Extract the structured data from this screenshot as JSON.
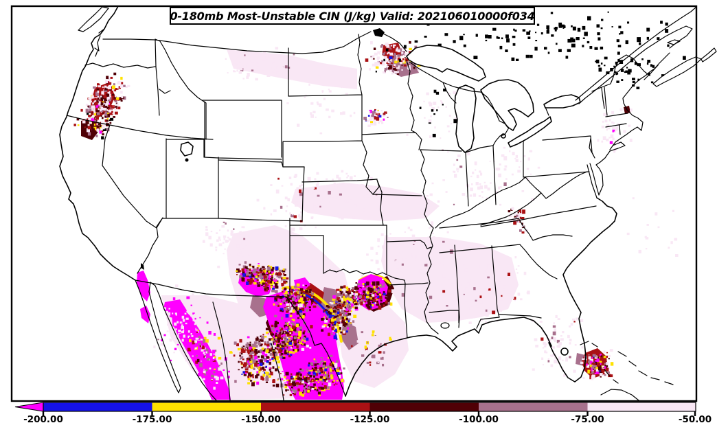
{
  "title": {
    "text": "0-180mb Most-Unstable CIN (J/kg) Valid: 202106010000f034"
  },
  "colorbar": {
    "tick_labels": [
      "-200.00",
      "-175.00",
      "-150.00",
      "-125.00",
      "-100.00",
      "-75.00",
      "-50.00"
    ],
    "segments": [
      {
        "range": "< -200",
        "color_key": "magenta",
        "shape": "left-arrow"
      },
      {
        "range": "-200 to -175",
        "color_key": "blue"
      },
      {
        "range": "-175 to -150",
        "color_key": "yellow"
      },
      {
        "range": "-150 to -125",
        "color_key": "firebrick"
      },
      {
        "range": "-125 to -100",
        "color_key": "dark_maroon"
      },
      {
        "range": "-100 to -75",
        "color_key": "mauve"
      },
      {
        "range": "-75 to -50",
        "color_key": "pale_pink"
      }
    ]
  },
  "palette": {
    "magenta": "#FF00FF",
    "blue": "#1512E8",
    "yellow": "#FFE200",
    "firebrick": "#AA1114",
    "dark_maroon": "#500006",
    "mauve": "#A8718D",
    "pale_pink": "#F9E7F5",
    "line_black": "#000000",
    "background": "#FFFFFF"
  },
  "chart_data": {
    "type": "heatmap",
    "title": "0-180mb Most-Unstable CIN (J/kg) Valid: 202106010000f034",
    "variable": "0-180mb Most-Unstable Convective Inhibition (CIN)",
    "unit": "J/kg",
    "valid_time": "202106010000f034",
    "basemap": "CONUS with state borders, Great Lakes, northern Mexico, southern Canada, Bahamas",
    "colorbar": {
      "ticks": [
        -200,
        -175,
        -150,
        -125,
        -100,
        -75,
        -50
      ],
      "orientation": "horizontal-bottom",
      "open_ended_left_arrow": true,
      "bins": [
        {
          "max": -200,
          "color": "#FF00FF"
        },
        {
          "min": -200,
          "max": -175,
          "color": "#1512E8"
        },
        {
          "min": -175,
          "max": -150,
          "color": "#FFE200"
        },
        {
          "min": -150,
          "max": -125,
          "color": "#AA1114"
        },
        {
          "min": -125,
          "max": -100,
          "color": "#500006"
        },
        {
          "min": -100,
          "max": -75,
          "color": "#A8718D"
        },
        {
          "min": -75,
          "max": -50,
          "color": "#F9E7F5"
        }
      ]
    },
    "regions": [
      {
        "area": "South Texas / Rio Grande valley",
        "approx_value": "< -200 (large magenta mass with blue/yellow/firebrick fringe)"
      },
      {
        "area": "Southeast New Mexico / Trans-Pecos / Chihuahua Mexico",
        "approx_value": "-200 to -100 dense speckles with < -200 cores"
      },
      {
        "area": "Northeast Texas / Southeast Oklahoma",
        "approx_value": "< -200 pocket ringed by -125 to -100"
      },
      {
        "area": "Baja California and Sonora/Sinaloa coast",
        "approx_value": "< -200 magenta bands"
      },
      {
        "area": "Oregon / far northern California",
        "approx_value": "-150 to -75 speckled cluster"
      },
      {
        "area": "Minnesota / North Dakota border",
        "approx_value": "-150 to -75 speckles"
      },
      {
        "area": "Bahamas east of south Florida",
        "approx_value": "-150 to -100 cluster with small < -200 core"
      },
      {
        "area": "Central Plains, Midwest, Southeast US",
        "approx_value": "-75 to -50 pale wash"
      },
      {
        "area": "Boston area / TN-VA Appalachians",
        "approx_value": "isolated -125 to -100 specks"
      }
    ]
  }
}
